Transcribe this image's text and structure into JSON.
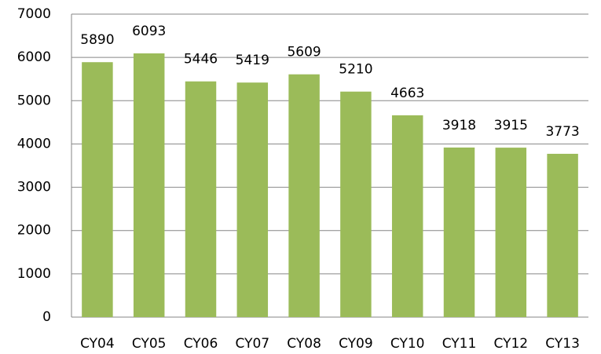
{
  "chart_data": {
    "type": "bar",
    "categories": [
      "CY04",
      "CY05",
      "CY06",
      "CY07",
      "CY08",
      "CY09",
      "CY10",
      "CY11",
      "CY12",
      "CY13"
    ],
    "values": [
      5890,
      6093,
      5446,
      5419,
      5609,
      5210,
      4663,
      3918,
      3915,
      3773
    ],
    "color": "#9bbb59",
    "ylim": [
      0,
      7000
    ],
    "yticks": [
      0,
      1000,
      2000,
      3000,
      4000,
      5000,
      6000,
      7000
    ],
    "grid": true
  }
}
